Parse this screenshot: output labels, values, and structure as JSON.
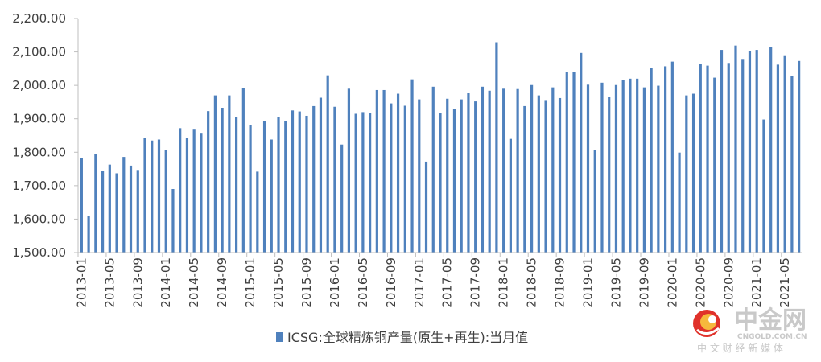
{
  "chart_data": {
    "type": "bar",
    "title": "",
    "xlabel": "",
    "ylabel": "",
    "ylim": [
      1500,
      2200
    ],
    "y_ticks": [
      "1,500.00",
      "1,600.00",
      "1,700.00",
      "1,800.00",
      "1,900.00",
      "2,000.00",
      "2,100.00",
      "2,200.00"
    ],
    "x_tick_labels": [
      "2013-01",
      "2013-05",
      "2013-09",
      "2014-01",
      "2014-05",
      "2014-09",
      "2015-01",
      "2015-05",
      "2015-09",
      "2016-01",
      "2016-05",
      "2016-09",
      "2017-01",
      "2017-05",
      "2017-09",
      "2018-01",
      "2018-05",
      "2018-09",
      "2019-01",
      "2019-05",
      "2019-09",
      "2020-01",
      "2020-05",
      "2020-09",
      "2021-01",
      "2021-05"
    ],
    "start_month": "2013-01",
    "grid": false,
    "legend_position": "bottom",
    "bar_color": "#4f81bd",
    "series": [
      {
        "name": "ICSG:全球精炼铜产量(原生+再生):当月值",
        "values": [
          1783,
          1610,
          1795,
          1743,
          1763,
          1737,
          1786,
          1760,
          1747,
          1843,
          1835,
          1838,
          1806,
          1690,
          1872,
          1843,
          1870,
          1858,
          1923,
          1970,
          1933,
          1970,
          1905,
          1993,
          1881,
          1742,
          1894,
          1838,
          1905,
          1894,
          1925,
          1922,
          1909,
          1938,
          1963,
          2030,
          1936,
          1823,
          1990,
          1915,
          1920,
          1918,
          1986,
          1986,
          1946,
          1975,
          1939,
          2018,
          1958,
          1772,
          1996,
          1917,
          1960,
          1929,
          1958,
          1978,
          1952,
          1996,
          1984,
          2129,
          1990,
          1840,
          1989,
          1938,
          2001,
          1970,
          1956,
          1994,
          1962,
          2040,
          2040,
          2097,
          2002,
          1807,
          2008,
          1965,
          2001,
          2015,
          2020,
          2020,
          1994,
          2051,
          1999,
          2057,
          2071,
          1799,
          1970,
          1975,
          2064,
          2059,
          2023,
          2106,
          2067,
          2119,
          2079,
          2102,
          2106,
          1898,
          2114,
          2062,
          2090,
          2029,
          2073
        ]
      }
    ]
  },
  "watermark": {
    "brand": "中金网",
    "domain": "CNGOLD.COM.CN",
    "slogan": "中 文 财 经 新 媒 体",
    "logo_color": "#e0312a"
  }
}
